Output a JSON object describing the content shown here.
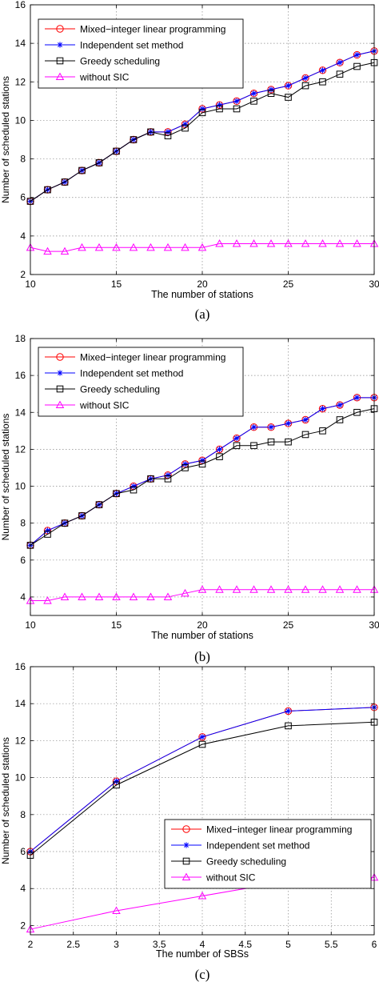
{
  "chart_data": [
    {
      "type": "line",
      "caption": "(a)",
      "xlabel": "The number of stations",
      "ylabel": "Number of scheduled stations",
      "xlim": [
        10,
        30
      ],
      "ylim": [
        2,
        16
      ],
      "xticks": [
        10,
        15,
        20,
        25,
        30
      ],
      "yticks": [
        2,
        4,
        6,
        8,
        10,
        12,
        14,
        16
      ],
      "xtick_labels": [
        "10",
        "15",
        "20",
        "25",
        "30"
      ],
      "ytick_labels": [
        "2",
        "4",
        "6",
        "8",
        "10",
        "12",
        "14",
        "16"
      ],
      "grid": true,
      "legend": "top-left",
      "x": [
        10,
        11,
        12,
        13,
        14,
        15,
        16,
        17,
        18,
        19,
        20,
        21,
        22,
        23,
        24,
        25,
        26,
        27,
        28,
        29,
        30
      ],
      "series": [
        {
          "name": "Mixed−integer linear programming",
          "color": "#ff0000",
          "marker": "circle",
          "values": [
            5.8,
            6.4,
            6.8,
            7.4,
            7.8,
            8.4,
            9.0,
            9.4,
            9.4,
            9.8,
            10.6,
            10.8,
            11.0,
            11.4,
            11.6,
            11.8,
            12.2,
            12.6,
            13.0,
            13.4,
            13.6
          ]
        },
        {
          "name": "Independent set method",
          "color": "#0000ff",
          "marker": "asterisk",
          "values": [
            5.8,
            6.4,
            6.8,
            7.4,
            7.8,
            8.4,
            9.0,
            9.4,
            9.4,
            9.8,
            10.6,
            10.8,
            11.0,
            11.4,
            11.6,
            11.8,
            12.2,
            12.6,
            13.0,
            13.4,
            13.6
          ]
        },
        {
          "name": "Greedy scheduling",
          "color": "#000000",
          "marker": "square",
          "values": [
            5.8,
            6.4,
            6.8,
            7.4,
            7.8,
            8.4,
            9.0,
            9.4,
            9.2,
            9.6,
            10.4,
            10.6,
            10.6,
            11.0,
            11.4,
            11.2,
            11.8,
            12.0,
            12.4,
            12.8,
            13.0
          ]
        },
        {
          "name": "without SIC",
          "color": "#ff00ff",
          "marker": "triangle",
          "values": [
            3.4,
            3.2,
            3.2,
            3.4,
            3.4,
            3.4,
            3.4,
            3.4,
            3.4,
            3.4,
            3.4,
            3.6,
            3.6,
            3.6,
            3.6,
            3.6,
            3.6,
            3.6,
            3.6,
            3.6,
            3.6
          ]
        }
      ]
    },
    {
      "type": "line",
      "caption": "(b)",
      "xlabel": "The number of stations",
      "ylabel": "Number of scheduled stations",
      "xlim": [
        10,
        30
      ],
      "ylim": [
        3,
        18
      ],
      "xticks": [
        10,
        15,
        20,
        25,
        30
      ],
      "yticks": [
        4,
        6,
        8,
        10,
        12,
        14,
        16,
        18
      ],
      "xtick_labels": [
        "10",
        "15",
        "20",
        "25",
        "30"
      ],
      "ytick_labels": [
        "4",
        "6",
        "8",
        "10",
        "12",
        "14",
        "16",
        "18"
      ],
      "grid": true,
      "legend": "top-left",
      "x": [
        10,
        11,
        12,
        13,
        14,
        15,
        16,
        17,
        18,
        19,
        20,
        21,
        22,
        23,
        24,
        25,
        26,
        27,
        28,
        29,
        30
      ],
      "series": [
        {
          "name": "Mixed−integer linear programming",
          "color": "#ff0000",
          "marker": "circle",
          "values": [
            6.8,
            7.6,
            8.0,
            8.4,
            9.0,
            9.6,
            10.0,
            10.4,
            10.6,
            11.2,
            11.4,
            12.0,
            12.6,
            13.2,
            13.2,
            13.4,
            13.6,
            14.2,
            14.4,
            14.8,
            14.8
          ]
        },
        {
          "name": "Independent set method",
          "color": "#0000ff",
          "marker": "asterisk",
          "values": [
            6.8,
            7.6,
            8.0,
            8.4,
            9.0,
            9.6,
            10.0,
            10.4,
            10.6,
            11.2,
            11.4,
            12.0,
            12.6,
            13.2,
            13.2,
            13.4,
            13.6,
            14.2,
            14.4,
            14.8,
            14.8
          ]
        },
        {
          "name": "Greedy scheduling",
          "color": "#000000",
          "marker": "square",
          "values": [
            6.8,
            7.4,
            8.0,
            8.4,
            9.0,
            9.6,
            9.8,
            10.4,
            10.4,
            11.0,
            11.2,
            11.6,
            12.2,
            12.2,
            12.4,
            12.4,
            12.8,
            13.0,
            13.6,
            14.0,
            14.2
          ]
        },
        {
          "name": "without SIC",
          "color": "#ff00ff",
          "marker": "triangle",
          "values": [
            3.8,
            3.8,
            4.0,
            4.0,
            4.0,
            4.0,
            4.0,
            4.0,
            4.0,
            4.2,
            4.4,
            4.4,
            4.4,
            4.4,
            4.4,
            4.4,
            4.4,
            4.4,
            4.4,
            4.4,
            4.4
          ]
        }
      ]
    },
    {
      "type": "line",
      "caption": "(c)",
      "xlabel": "The number of SBSs",
      "ylabel": "Number of scheduled stations",
      "xlim": [
        2,
        6
      ],
      "ylim": [
        1.5,
        16
      ],
      "xticks": [
        2,
        2.5,
        3,
        3.5,
        4,
        4.5,
        5,
        5.5,
        6
      ],
      "yticks": [
        2,
        4,
        6,
        8,
        10,
        12,
        14,
        16
      ],
      "xtick_labels": [
        "2",
        "2.5",
        "3",
        "3.5",
        "4",
        "4.5",
        "5",
        "5.5",
        "6"
      ],
      "ytick_labels": [
        "2",
        "4",
        "6",
        "8",
        "10",
        "12",
        "14",
        "16"
      ],
      "grid": true,
      "legend": "center-right",
      "x": [
        2,
        3,
        4,
        5,
        6
      ],
      "series": [
        {
          "name": "Mixed−integer linear programming",
          "color": "#ff0000",
          "marker": "circle",
          "values": [
            6.0,
            9.8,
            12.2,
            13.6,
            13.8
          ]
        },
        {
          "name": "Independent set method",
          "color": "#0000ff",
          "marker": "asterisk",
          "values": [
            6.0,
            9.8,
            12.2,
            13.6,
            13.8
          ]
        },
        {
          "name": "Greedy scheduling",
          "color": "#000000",
          "marker": "square",
          "values": [
            5.8,
            9.6,
            11.8,
            12.8,
            13.0
          ]
        },
        {
          "name": "without SIC",
          "color": "#ff00ff",
          "marker": "triangle",
          "values": [
            1.8,
            2.8,
            3.6,
            4.4,
            4.6
          ]
        }
      ]
    }
  ]
}
